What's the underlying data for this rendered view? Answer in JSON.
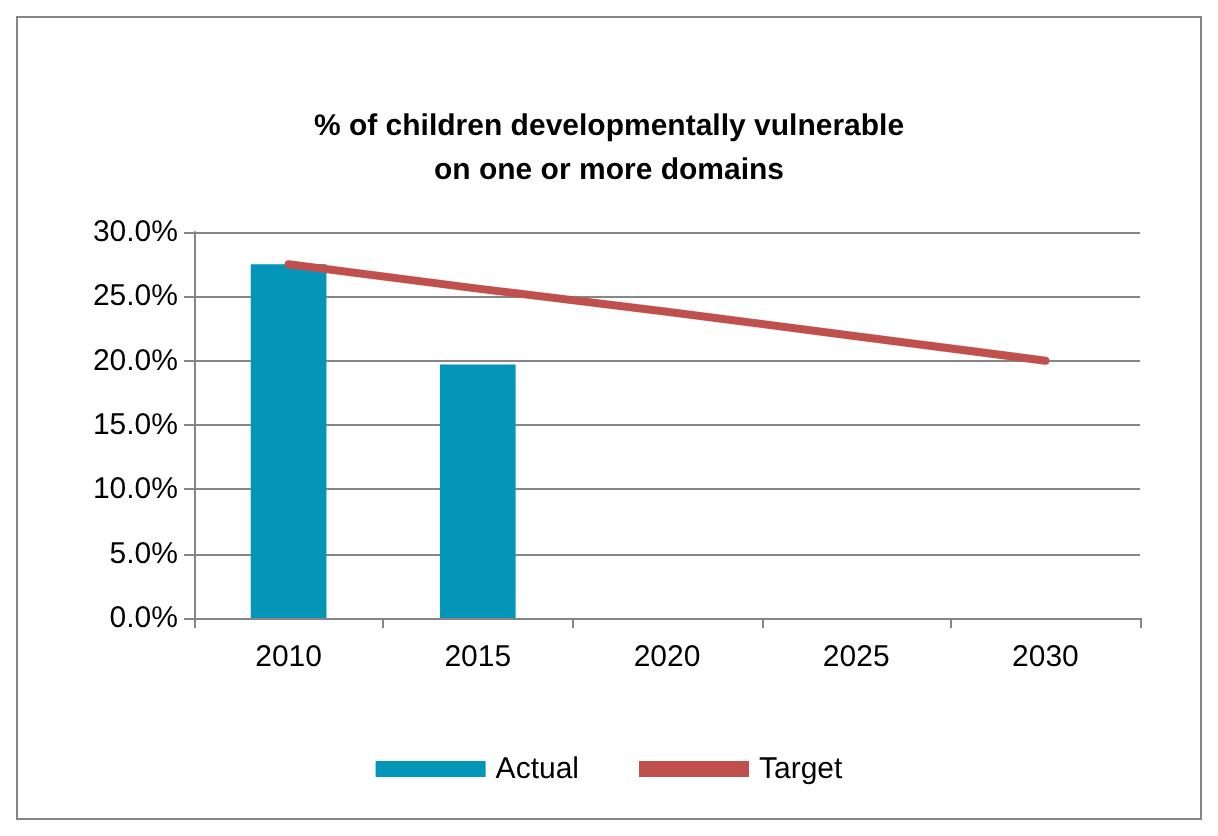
{
  "chart_data": {
    "type": "bar",
    "title": "% of children developmentally vulnerable\non one or more domains",
    "categories": [
      "2010",
      "2015",
      "2020",
      "2025",
      "2030"
    ],
    "series": [
      {
        "name": "Actual",
        "color": "#0396b8",
        "values": [
          27.5,
          19.7,
          null,
          null,
          null
        ]
      },
      {
        "name": "Target",
        "type": "line",
        "color": "#c0504d",
        "values": [
          27.5,
          25.6,
          23.8,
          21.9,
          20.0
        ]
      }
    ],
    "ylim": [
      0,
      30
    ],
    "yticks": [
      {
        "value": 0,
        "label": "0.0%"
      },
      {
        "value": 5,
        "label": "5.0%"
      },
      {
        "value": 10,
        "label": "10.0%"
      },
      {
        "value": 15,
        "label": "15.0%"
      },
      {
        "value": 20,
        "label": "20.0%"
      },
      {
        "value": 25,
        "label": "25.0%"
      },
      {
        "value": 30,
        "label": "30.0%"
      }
    ],
    "grid": "y",
    "legend": "bottom",
    "marker": "none",
    "line_style": "solid"
  }
}
